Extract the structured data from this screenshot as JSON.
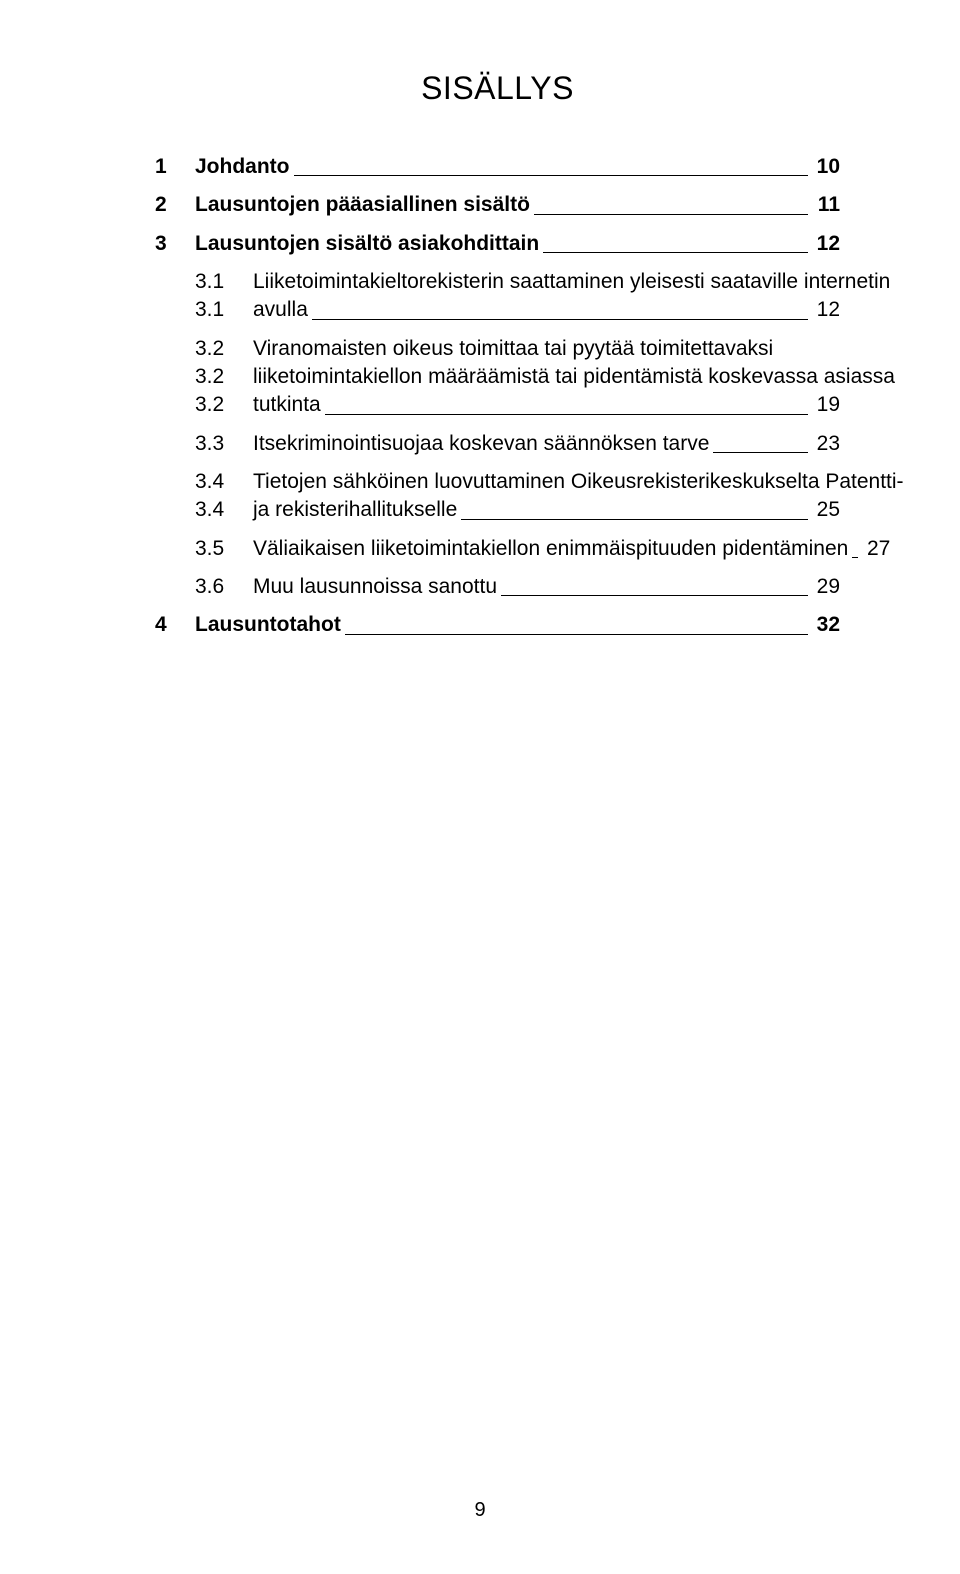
{
  "title": {
    "text": "SISÄLLYS",
    "fontsize": 32
  },
  "fontsize_l1": 21,
  "fontsize_l2": 21,
  "page_number": "9",
  "pagenum_fontsize": 20,
  "entries": [
    {
      "level": 1,
      "num": "1",
      "text": "Johdanto",
      "page": "10"
    },
    {
      "level": 1,
      "num": "2",
      "text": "Lausuntojen pääasiallinen sisältö",
      "page": "11"
    },
    {
      "level": 1,
      "num": "3",
      "text": "Lausuntojen sisältö asiakohdittain",
      "page": "12"
    },
    {
      "level": 2,
      "num": "3.1",
      "lines": [
        "Liiketoimintakieltorekisterin saattaminen yleisesti saataville internetin",
        "avulla"
      ],
      "page": "12"
    },
    {
      "level": 2,
      "num": "3.2",
      "lines": [
        "Viranomaisten oikeus toimittaa tai pyytää toimitettavaksi",
        "liiketoimintakiellon määräämistä tai pidentämistä koskevassa asiassa",
        "tutkinta"
      ],
      "page": "19"
    },
    {
      "level": 2,
      "num": "3.3",
      "text": "Itsekriminointisuojaa koskevan säännöksen tarve",
      "page": "23"
    },
    {
      "level": 2,
      "num": "3.4",
      "lines": [
        "Tietojen sähköinen luovuttaminen Oikeusrekisterikeskukselta Patentti-",
        "ja rekisterihallitukselle"
      ],
      "page": "25"
    },
    {
      "level": 2,
      "num": "3.5",
      "text": "Väliaikaisen liiketoimintakiellon enimmäispituuden pidentäminen",
      "page": "27"
    },
    {
      "level": 2,
      "num": "3.6",
      "text": "Muu lausunnoissa sanottu",
      "page": "29"
    },
    {
      "level": 1,
      "num": "4",
      "text": "Lausuntotahot",
      "page": "32"
    }
  ]
}
